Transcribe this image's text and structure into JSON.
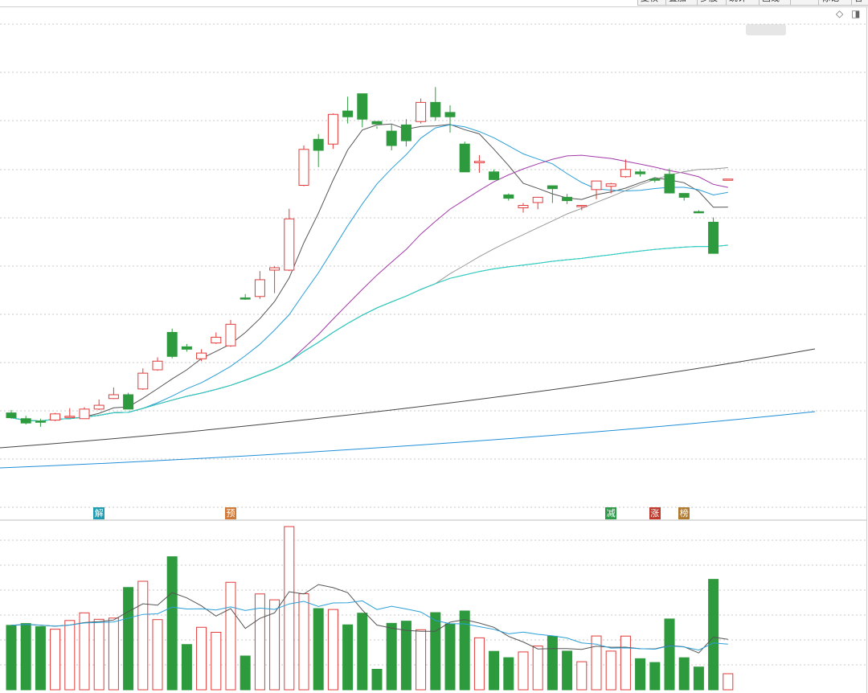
{
  "toolbar": {
    "buttons": [
      "复权",
      "叠加",
      "多股",
      "统计",
      "画线",
      "···",
      "标记",
      "各"
    ]
  },
  "panel_icons": {
    "diamond": "diamond-icon",
    "toggle": "panel-toggle-icon"
  },
  "event_markers": [
    {
      "label": "解",
      "bar": 6,
      "color": "#1f9bb0"
    },
    {
      "label": "预",
      "bar": 15,
      "color": "#d07a3a"
    },
    {
      "label": "减",
      "bar": 41,
      "color": "#2e9a4a"
    },
    {
      "label": "涨",
      "bar": 44,
      "color": "#c0392b"
    },
    {
      "label": "榜",
      "bar": 46,
      "color": "#b07a2e"
    }
  ],
  "chart_data": [
    {
      "type": "candlestick",
      "price_ylim": [
        1.0,
        11.2
      ],
      "grid": true,
      "candles": [
        [
          3.12,
          3.02,
          3.18,
          3.0
        ],
        [
          3.0,
          2.91,
          3.06,
          2.88
        ],
        [
          2.95,
          2.93,
          3.0,
          2.83
        ],
        [
          2.97,
          3.1,
          3.12,
          2.95
        ],
        [
          3.05,
          3.05,
          3.22,
          3.02
        ],
        [
          3.0,
          3.2,
          3.24,
          3.0
        ],
        [
          3.2,
          3.28,
          3.4,
          3.18
        ],
        [
          3.42,
          3.5,
          3.65,
          3.41
        ],
        [
          3.5,
          3.2,
          3.54,
          3.2
        ],
        [
          3.62,
          3.95,
          4.05,
          3.6
        ],
        [
          4.02,
          4.2,
          4.28,
          4.0
        ],
        [
          4.8,
          4.3,
          4.88,
          4.26
        ],
        [
          4.5,
          4.45,
          4.56,
          4.4
        ],
        [
          4.25,
          4.37,
          4.45,
          4.2
        ],
        [
          4.58,
          4.7,
          4.8,
          4.56
        ],
        [
          4.52,
          4.97,
          5.06,
          4.5
        ],
        [
          5.52,
          5.5,
          5.6,
          5.48
        ],
        [
          5.55,
          5.9,
          6.08,
          5.5
        ],
        [
          6.1,
          6.15,
          6.18,
          5.62
        ],
        [
          6.1,
          7.17,
          7.38,
          6.08
        ],
        [
          7.87,
          8.62,
          8.7,
          7.85
        ],
        [
          8.83,
          8.6,
          8.94,
          8.25
        ],
        [
          8.73,
          9.35,
          9.37,
          8.63
        ],
        [
          9.42,
          9.3,
          9.72,
          9.16
        ],
        [
          9.78,
          9.25,
          9.77,
          9.08
        ],
        [
          9.2,
          9.15,
          9.1,
          9.05
        ],
        [
          9.0,
          8.7,
          9.14,
          8.6
        ],
        [
          9.13,
          8.8,
          9.25,
          8.68
        ],
        [
          9.2,
          9.6,
          9.68,
          9.16
        ],
        [
          9.6,
          9.3,
          9.92,
          9.22
        ],
        [
          9.39,
          9.3,
          9.54,
          8.97
        ],
        [
          8.73,
          8.15,
          8.78,
          8.15
        ],
        [
          8.34,
          8.37,
          8.5,
          8.13
        ],
        [
          8.15,
          7.99,
          8.2,
          7.98
        ],
        [
          7.67,
          7.6,
          7.7,
          7.55
        ],
        [
          7.4,
          7.45,
          7.5,
          7.3
        ],
        [
          7.51,
          7.62,
          7.63,
          7.37
        ],
        [
          7.86,
          7.8,
          7.86,
          7.5
        ],
        [
          7.62,
          7.55,
          7.69,
          7.48
        ],
        [
          7.45,
          7.45,
          7.46,
          7.35
        ],
        [
          7.78,
          7.96,
          7.95,
          7.58
        ],
        [
          7.85,
          7.9,
          7.92,
          7.7
        ],
        [
          8.05,
          8.2,
          8.41,
          8.03
        ],
        [
          8.15,
          8.11,
          8.2,
          8.05
        ],
        [
          8.0,
          7.98,
          8.04,
          7.93
        ],
        [
          8.1,
          7.71,
          8.22,
          7.7
        ],
        [
          7.7,
          7.62,
          7.7,
          7.55
        ],
        [
          7.32,
          7.3,
          7.35,
          7.29
        ],
        [
          7.1,
          6.45,
          7.2,
          6.45
        ],
        [
          8.0,
          8.0,
          8.0,
          8.0
        ]
      ]
    },
    {
      "type": "bar",
      "title": "",
      "series": [
        {
          "values": []
        }
      ]
    }
  ]
}
